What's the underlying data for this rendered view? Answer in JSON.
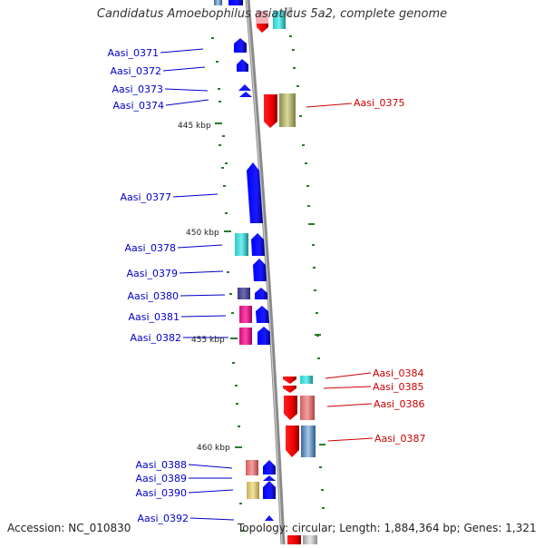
{
  "title": "Candidatus Amoebophilus asiaticus 5a2, complete genome",
  "footer": {
    "accession": "Accession: NC_010830",
    "summary": "Topology: circular; Length: 1,884,364 bp; Genes: 1,321"
  },
  "colors": {
    "left_label": "#0000cc",
    "right_label": "#cc0000",
    "backbone": "#8a8a8a",
    "tick": "#2a7a2a"
  },
  "kbp_markers": [
    "445 kbp",
    "450 kbp",
    "455 kbp",
    "460 kbp"
  ],
  "left_genes": [
    {
      "label": "Aasi_0371"
    },
    {
      "label": "Aasi_0372"
    },
    {
      "label": "Aasi_0373"
    },
    {
      "label": "Aasi_0374"
    },
    {
      "label": "Aasi_0377"
    },
    {
      "label": "Aasi_0378"
    },
    {
      "label": "Aasi_0379"
    },
    {
      "label": "Aasi_0380"
    },
    {
      "label": "Aasi_0381"
    },
    {
      "label": "Aasi_0382"
    },
    {
      "label": "Aasi_0388"
    },
    {
      "label": "Aasi_0389"
    },
    {
      "label": "Aasi_0390"
    },
    {
      "label": "Aasi_0392"
    }
  ],
  "right_genes": [
    {
      "label": "Aasi_0375"
    },
    {
      "label": "Aasi_0384"
    },
    {
      "label": "Aasi_0385"
    },
    {
      "label": "Aasi_0386"
    },
    {
      "label": "Aasi_0387"
    }
  ]
}
